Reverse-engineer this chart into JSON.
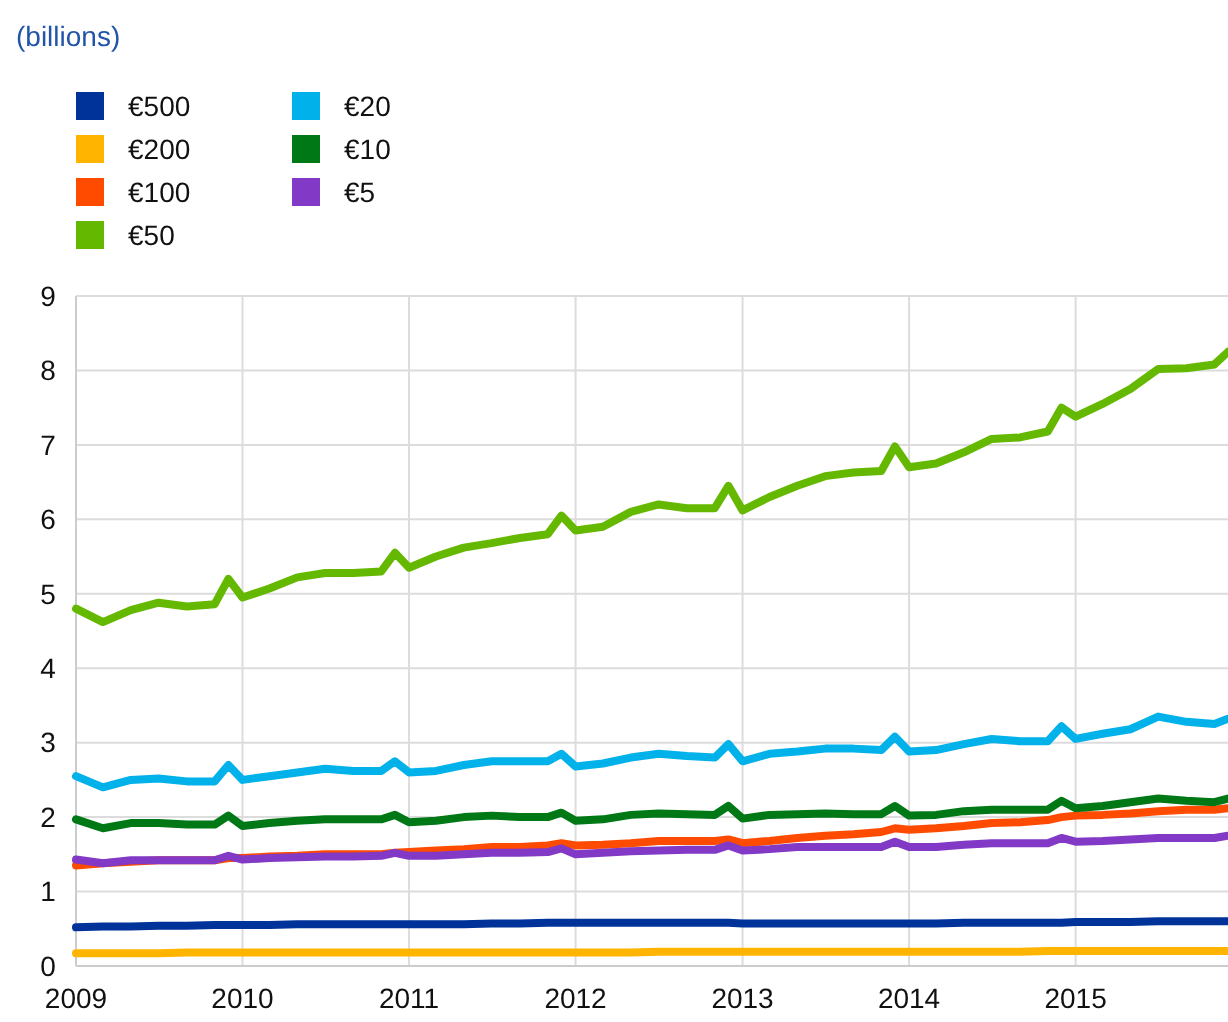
{
  "chart_data": {
    "type": "line",
    "subtitle": "(billions)",
    "x": [
      "2009-01",
      "2009-03",
      "2009-05",
      "2009-07",
      "2009-09",
      "2009-11",
      "2009-12",
      "2010-01",
      "2010-03",
      "2010-05",
      "2010-07",
      "2010-09",
      "2010-11",
      "2010-12",
      "2011-01",
      "2011-03",
      "2011-05",
      "2011-07",
      "2011-09",
      "2011-11",
      "2011-12",
      "2012-01",
      "2012-03",
      "2012-05",
      "2012-07",
      "2012-09",
      "2012-11",
      "2012-12",
      "2013-01",
      "2013-03",
      "2013-05",
      "2013-07",
      "2013-09",
      "2013-11",
      "2013-12",
      "2014-01",
      "2014-03",
      "2014-05",
      "2014-07",
      "2014-09",
      "2014-11",
      "2014-12",
      "2015-01",
      "2015-03",
      "2015-05",
      "2015-07",
      "2015-09",
      "2015-11",
      "2015-12"
    ],
    "series": [
      {
        "name": "€500",
        "color": "#003399",
        "values": [
          0.52,
          0.53,
          0.53,
          0.54,
          0.54,
          0.55,
          0.55,
          0.55,
          0.55,
          0.56,
          0.56,
          0.56,
          0.56,
          0.56,
          0.56,
          0.56,
          0.56,
          0.57,
          0.57,
          0.58,
          0.58,
          0.58,
          0.58,
          0.58,
          0.58,
          0.58,
          0.58,
          0.58,
          0.57,
          0.57,
          0.57,
          0.57,
          0.57,
          0.57,
          0.57,
          0.57,
          0.57,
          0.58,
          0.58,
          0.58,
          0.58,
          0.58,
          0.59,
          0.59,
          0.59,
          0.6,
          0.6,
          0.6,
          0.6
        ]
      },
      {
        "name": "€200",
        "color": "#ffb400",
        "values": [
          0.17,
          0.17,
          0.17,
          0.17,
          0.18,
          0.18,
          0.18,
          0.18,
          0.18,
          0.18,
          0.18,
          0.18,
          0.18,
          0.18,
          0.18,
          0.18,
          0.18,
          0.18,
          0.18,
          0.18,
          0.18,
          0.18,
          0.18,
          0.18,
          0.19,
          0.19,
          0.19,
          0.19,
          0.19,
          0.19,
          0.19,
          0.19,
          0.19,
          0.19,
          0.19,
          0.19,
          0.19,
          0.19,
          0.19,
          0.19,
          0.2,
          0.2,
          0.2,
          0.2,
          0.2,
          0.2,
          0.2,
          0.2,
          0.2
        ]
      },
      {
        "name": "€100",
        "color": "#ff4b00",
        "values": [
          1.35,
          1.38,
          1.4,
          1.42,
          1.42,
          1.42,
          1.45,
          1.45,
          1.47,
          1.48,
          1.5,
          1.5,
          1.5,
          1.52,
          1.53,
          1.55,
          1.57,
          1.6,
          1.6,
          1.62,
          1.65,
          1.62,
          1.63,
          1.65,
          1.68,
          1.68,
          1.68,
          1.7,
          1.65,
          1.68,
          1.72,
          1.75,
          1.77,
          1.8,
          1.85,
          1.83,
          1.85,
          1.88,
          1.92,
          1.93,
          1.96,
          2.0,
          2.02,
          2.03,
          2.05,
          2.08,
          2.1,
          2.1,
          2.12
        ]
      },
      {
        "name": "€50",
        "color": "#65b800",
        "values": [
          4.8,
          4.62,
          4.78,
          4.88,
          4.83,
          4.86,
          5.2,
          4.95,
          5.07,
          5.22,
          5.28,
          5.28,
          5.3,
          5.55,
          5.35,
          5.5,
          5.62,
          5.68,
          5.75,
          5.8,
          6.05,
          5.85,
          5.9,
          6.1,
          6.2,
          6.15,
          6.15,
          6.45,
          6.12,
          6.3,
          6.45,
          6.58,
          6.63,
          6.65,
          6.98,
          6.7,
          6.75,
          6.9,
          7.08,
          7.1,
          7.18,
          7.5,
          7.38,
          7.55,
          7.75,
          8.02,
          8.03,
          8.08,
          8.25
        ]
      },
      {
        "name": "€20",
        "color": "#00b1ea",
        "values": [
          2.55,
          2.4,
          2.5,
          2.52,
          2.48,
          2.48,
          2.7,
          2.5,
          2.55,
          2.6,
          2.65,
          2.62,
          2.62,
          2.75,
          2.6,
          2.62,
          2.7,
          2.75,
          2.75,
          2.75,
          2.85,
          2.68,
          2.72,
          2.8,
          2.85,
          2.82,
          2.8,
          2.98,
          2.75,
          2.85,
          2.88,
          2.92,
          2.92,
          2.9,
          3.08,
          2.88,
          2.9,
          2.98,
          3.05,
          3.02,
          3.02,
          3.22,
          3.05,
          3.12,
          3.18,
          3.35,
          3.28,
          3.25,
          3.32
        ]
      },
      {
        "name": "€10",
        "color": "#007816",
        "values": [
          1.97,
          1.85,
          1.92,
          1.92,
          1.9,
          1.9,
          2.02,
          1.88,
          1.92,
          1.95,
          1.97,
          1.97,
          1.97,
          2.03,
          1.93,
          1.95,
          2.0,
          2.02,
          2.0,
          2.0,
          2.06,
          1.95,
          1.97,
          2.03,
          2.05,
          2.04,
          2.03,
          2.15,
          1.98,
          2.03,
          2.04,
          2.05,
          2.04,
          2.04,
          2.15,
          2.02,
          2.03,
          2.08,
          2.1,
          2.1,
          2.1,
          2.22,
          2.12,
          2.15,
          2.2,
          2.25,
          2.22,
          2.2,
          2.25
        ]
      },
      {
        "name": "€5",
        "color": "#8139c6",
        "values": [
          1.43,
          1.38,
          1.42,
          1.42,
          1.42,
          1.42,
          1.48,
          1.43,
          1.45,
          1.46,
          1.47,
          1.47,
          1.48,
          1.52,
          1.48,
          1.48,
          1.5,
          1.52,
          1.52,
          1.53,
          1.58,
          1.5,
          1.52,
          1.54,
          1.55,
          1.56,
          1.56,
          1.62,
          1.55,
          1.57,
          1.6,
          1.6,
          1.6,
          1.6,
          1.67,
          1.6,
          1.6,
          1.63,
          1.65,
          1.65,
          1.65,
          1.72,
          1.67,
          1.68,
          1.7,
          1.72,
          1.72,
          1.72,
          1.75
        ]
      }
    ],
    "xlim": [
      "2009-01",
      "2015-12"
    ],
    "xticks": [
      {
        "value": "2009-01",
        "label": "2009"
      },
      {
        "value": "2010-01",
        "label": "2010"
      },
      {
        "value": "2011-01",
        "label": "2011"
      },
      {
        "value": "2012-01",
        "label": "2012"
      },
      {
        "value": "2013-01",
        "label": "2013"
      },
      {
        "value": "2014-01",
        "label": "2014"
      },
      {
        "value": "2015-01",
        "label": "2015"
      }
    ],
    "ylim": [
      0,
      9
    ],
    "yticks": [
      0,
      1,
      2,
      3,
      4,
      5,
      6,
      7,
      8,
      9
    ],
    "grid": true,
    "legend": "top left",
    "marker": "none",
    "line_style": "solid"
  }
}
